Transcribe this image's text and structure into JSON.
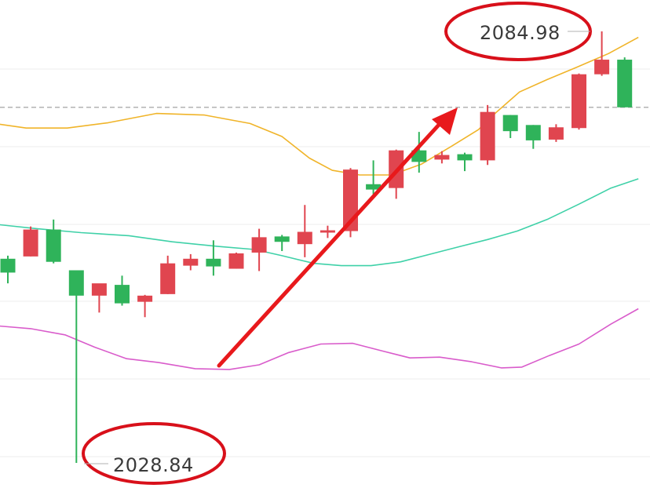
{
  "chart_data": {
    "type": "candlestick",
    "title": "",
    "ylim": [
      2026,
      2088
    ],
    "grid": "horizontal",
    "reference_line": {
      "value": 2075.1,
      "style": "dashed"
    },
    "colors": {
      "up": "#e0454f",
      "down": "#2fb35a",
      "upper_band": "#f0b429",
      "middle_band": "#3fd1a8",
      "lower_band": "#d95ccb",
      "arrow": "#e8191c",
      "annotation_ring": "#d8101a"
    },
    "candles": [
      {
        "o": 2055.4,
        "h": 2055.8,
        "l": 2052.2,
        "c": 2053.6
      },
      {
        "o": 2055.7,
        "h": 2059.6,
        "l": 2055.7,
        "c": 2059.2
      },
      {
        "o": 2059.2,
        "h": 2060.5,
        "l": 2054.8,
        "c": 2055.0
      },
      {
        "o": 2053.9,
        "h": 2053.9,
        "l": 2028.84,
        "c": 2050.6
      },
      {
        "o": 2050.6,
        "h": 2052.0,
        "l": 2048.4,
        "c": 2052.2
      },
      {
        "o": 2052.0,
        "h": 2053.2,
        "l": 2049.3,
        "c": 2049.6
      },
      {
        "o": 2049.8,
        "h": 2050.7,
        "l": 2047.8,
        "c": 2050.6
      },
      {
        "o": 2050.8,
        "h": 2055.8,
        "l": 2050.8,
        "c": 2054.8
      },
      {
        "o": 2054.5,
        "h": 2056.0,
        "l": 2053.9,
        "c": 2055.4
      },
      {
        "o": 2055.4,
        "h": 2057.8,
        "l": 2053.2,
        "c": 2054.4
      },
      {
        "o": 2054.1,
        "h": 2056.2,
        "l": 2054.1,
        "c": 2056.1
      },
      {
        "o": 2056.2,
        "h": 2059.3,
        "l": 2053.8,
        "c": 2058.2
      },
      {
        "o": 2058.3,
        "h": 2058.5,
        "l": 2056.4,
        "c": 2057.6
      },
      {
        "o": 2057.3,
        "h": 2062.4,
        "l": 2055.6,
        "c": 2058.9
      },
      {
        "o": 2058.8,
        "h": 2059.7,
        "l": 2058.1,
        "c": 2059.1
      },
      {
        "o": 2059.0,
        "h": 2067.2,
        "l": 2058.2,
        "c": 2067.0
      },
      {
        "o": 2065.1,
        "h": 2068.2,
        "l": 2063.8,
        "c": 2064.4
      },
      {
        "o": 2064.6,
        "h": 2069.6,
        "l": 2063.2,
        "c": 2069.5
      },
      {
        "o": 2069.5,
        "h": 2071.9,
        "l": 2066.6,
        "c": 2068.0
      },
      {
        "o": 2068.3,
        "h": 2069.4,
        "l": 2067.8,
        "c": 2068.9
      },
      {
        "o": 2069.0,
        "h": 2069.2,
        "l": 2066.8,
        "c": 2068.2
      },
      {
        "o": 2068.2,
        "h": 2075.4,
        "l": 2067.6,
        "c": 2074.5
      },
      {
        "o": 2074.1,
        "h": 2074.1,
        "l": 2071.1,
        "c": 2072.0
      },
      {
        "o": 2072.8,
        "h": 2072.8,
        "l": 2069.7,
        "c": 2070.8
      },
      {
        "o": 2070.9,
        "h": 2072.9,
        "l": 2070.6,
        "c": 2072.5
      },
      {
        "o": 2072.4,
        "h": 2079.5,
        "l": 2072.2,
        "c": 2079.4
      },
      {
        "o": 2079.4,
        "h": 2084.98,
        "l": 2079.2,
        "c": 2081.3
      },
      {
        "o": 2081.3,
        "h": 2081.6,
        "l": 2075.1,
        "c": 2075.1
      }
    ],
    "bands": {
      "upper": [
        [
          -0.6,
          2073.0
        ],
        [
          0.8,
          2072.4
        ],
        [
          2.6,
          2072.4
        ],
        [
          4.4,
          2073.1
        ],
        [
          6.5,
          2074.3
        ],
        [
          8.6,
          2074.1
        ],
        [
          10.6,
          2073.0
        ],
        [
          12.0,
          2071.3
        ],
        [
          13.2,
          2068.5
        ],
        [
          14.2,
          2066.9
        ],
        [
          15.4,
          2066.3
        ],
        [
          16.8,
          2066.3
        ],
        [
          18.1,
          2067.7
        ],
        [
          19.4,
          2070.0
        ],
        [
          20.6,
          2072.2
        ],
        [
          21.4,
          2074.5
        ],
        [
          22.4,
          2077.1
        ],
        [
          23.6,
          2078.7
        ],
        [
          24.9,
          2080.3
        ],
        [
          26.3,
          2082.1
        ],
        [
          27.6,
          2084.2
        ]
      ],
      "middle": [
        [
          -0.6,
          2059.9
        ],
        [
          1.3,
          2059.3
        ],
        [
          3.2,
          2058.8
        ],
        [
          5.3,
          2058.4
        ],
        [
          7.2,
          2057.6
        ],
        [
          9.2,
          2057.0
        ],
        [
          10.8,
          2056.6
        ],
        [
          12.0,
          2055.8
        ],
        [
          13.4,
          2054.8
        ],
        [
          14.6,
          2054.5
        ],
        [
          15.9,
          2054.5
        ],
        [
          17.2,
          2055.0
        ],
        [
          18.5,
          2056.0
        ],
        [
          19.8,
          2057.0
        ],
        [
          21.0,
          2057.9
        ],
        [
          22.3,
          2059.0
        ],
        [
          23.6,
          2060.5
        ],
        [
          25.0,
          2062.5
        ],
        [
          26.4,
          2064.6
        ],
        [
          27.6,
          2065.8
        ]
      ],
      "lower": [
        [
          -0.6,
          2046.7
        ],
        [
          1.0,
          2046.3
        ],
        [
          2.5,
          2045.5
        ],
        [
          3.8,
          2043.9
        ],
        [
          5.2,
          2042.4
        ],
        [
          6.6,
          2041.9
        ],
        [
          8.2,
          2041.1
        ],
        [
          9.7,
          2041.0
        ],
        [
          11.0,
          2041.6
        ],
        [
          12.3,
          2043.2
        ],
        [
          13.7,
          2044.3
        ],
        [
          15.1,
          2044.4
        ],
        [
          16.4,
          2043.4
        ],
        [
          17.6,
          2042.5
        ],
        [
          18.9,
          2042.6
        ],
        [
          20.3,
          2042.0
        ],
        [
          21.6,
          2041.2
        ],
        [
          22.5,
          2041.3
        ],
        [
          23.7,
          2042.8
        ],
        [
          25.0,
          2044.3
        ],
        [
          26.4,
          2046.9
        ],
        [
          27.6,
          2048.9
        ]
      ]
    },
    "annotations": [
      {
        "text": "2084.98",
        "marks": "high"
      },
      {
        "text": "2028.84",
        "marks": "low"
      }
    ]
  }
}
